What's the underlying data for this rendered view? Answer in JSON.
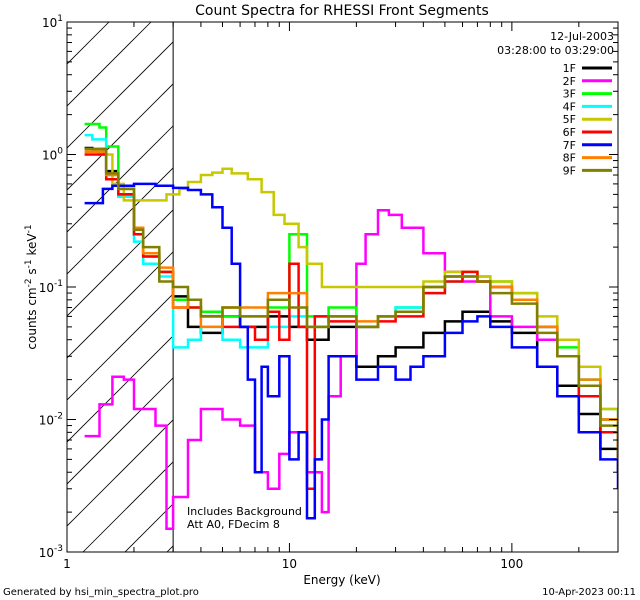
{
  "chart_data": {
    "type": "line",
    "title": "Count Spectra for RHESSI Front Segments",
    "xlabel": "Energy (keV)",
    "ylabel_parts": [
      "counts cm",
      "-2",
      " s",
      "-1",
      " keV",
      "-1"
    ],
    "xscale": "log",
    "yscale": "log",
    "xlim": [
      1,
      300
    ],
    "ylim": [
      0.001,
      10
    ],
    "x_ticks": [
      {
        "value": 1,
        "label": "1"
      },
      {
        "value": 10,
        "label": "10"
      },
      {
        "value": 100,
        "label": "100"
      }
    ],
    "y_ticks": [
      {
        "value": 10,
        "base": "10",
        "exp": "1"
      },
      {
        "value": 1,
        "base": "10",
        "exp": "0"
      },
      {
        "value": 0.1,
        "base": "10",
        "exp": "-1"
      },
      {
        "value": 0.01,
        "base": "10",
        "exp": "-2"
      },
      {
        "value": 0.001,
        "base": "10",
        "exp": "-3"
      }
    ],
    "shaded_region": {
      "x_from": 1,
      "x_to": 3,
      "pattern": "hatched"
    },
    "date": "12-Jul-2003",
    "time_range": "03:28:00 to 03:29:00",
    "annotations": [
      "Includes Background",
      "Att A0, FDecim 8"
    ],
    "footer_left": "Generated by hsi_min_spectra_plot.pro",
    "footer_right": "10-Apr-2023 00:11",
    "series": [
      {
        "name": "1F",
        "color": "#000000",
        "points": [
          [
            1.2,
            1.12
          ],
          [
            1.3,
            1.1
          ],
          [
            1.5,
            0.75
          ],
          [
            1.7,
            0.5
          ],
          [
            2.0,
            0.27
          ],
          [
            2.2,
            0.18
          ],
          [
            2.6,
            0.13
          ],
          [
            3.0,
            0.085
          ],
          [
            3.5,
            0.05
          ],
          [
            4.0,
            0.045
          ],
          [
            5.0,
            0.06
          ],
          [
            6.0,
            0.05
          ],
          [
            8.0,
            0.06
          ],
          [
            10,
            0.05
          ],
          [
            12,
            0.04
          ],
          [
            15,
            0.05
          ],
          [
            20,
            0.025
          ],
          [
            25,
            0.03
          ],
          [
            30,
            0.035
          ],
          [
            40,
            0.045
          ],
          [
            50,
            0.055
          ],
          [
            60,
            0.065
          ],
          [
            70,
            0.065
          ],
          [
            80,
            0.055
          ],
          [
            100,
            0.045
          ],
          [
            130,
            0.025
          ],
          [
            160,
            0.018
          ],
          [
            200,
            0.011
          ],
          [
            250,
            0.006
          ],
          [
            300,
            0.004
          ]
        ]
      },
      {
        "name": "2F",
        "color": "#ff00ff",
        "points": [
          [
            1.2,
            0.0075
          ],
          [
            1.4,
            0.013
          ],
          [
            1.6,
            0.021
          ],
          [
            1.8,
            0.02
          ],
          [
            2.0,
            0.012
          ],
          [
            2.2,
            0.012
          ],
          [
            2.5,
            0.009
          ],
          [
            2.8,
            0.0015
          ],
          [
            3.0,
            0.0026
          ],
          [
            3.5,
            0.007
          ],
          [
            4.0,
            0.012
          ],
          [
            5.0,
            0.01
          ],
          [
            6.0,
            0.009
          ],
          [
            7.0,
            0.004
          ],
          [
            8.0,
            0.003
          ],
          [
            9.0,
            0.0055
          ],
          [
            10,
            0.008
          ],
          [
            12,
            0.004
          ],
          [
            14,
            0.002
          ],
          [
            15,
            0.015
          ],
          [
            17,
            0.03
          ],
          [
            20,
            0.15
          ],
          [
            22,
            0.25
          ],
          [
            25,
            0.38
          ],
          [
            28,
            0.35
          ],
          [
            32,
            0.28
          ],
          [
            40,
            0.18
          ],
          [
            50,
            0.13
          ],
          [
            60,
            0.11
          ],
          [
            80,
            0.06
          ],
          [
            100,
            0.05
          ],
          [
            130,
            0.04
          ],
          [
            160,
            0.03
          ],
          [
            200,
            0.015
          ],
          [
            250,
            0.01
          ],
          [
            300,
            0.008
          ]
        ]
      },
      {
        "name": "3F",
        "color": "#00ff00",
        "points": [
          [
            1.2,
            1.7
          ],
          [
            1.4,
            1.6
          ],
          [
            1.5,
            1.15
          ],
          [
            1.7,
            0.55
          ],
          [
            2.0,
            0.25
          ],
          [
            2.2,
            0.17
          ],
          [
            2.6,
            0.13
          ],
          [
            3.0,
            0.08
          ],
          [
            3.5,
            0.07
          ],
          [
            4.0,
            0.065
          ],
          [
            5.0,
            0.06
          ],
          [
            6.0,
            0.06
          ],
          [
            8.0,
            0.07
          ],
          [
            10,
            0.25
          ],
          [
            12,
            0.06
          ],
          [
            15,
            0.07
          ],
          [
            20,
            0.05
          ],
          [
            25,
            0.06
          ],
          [
            30,
            0.07
          ],
          [
            40,
            0.1
          ],
          [
            50,
            0.12
          ],
          [
            60,
            0.13
          ],
          [
            70,
            0.12
          ],
          [
            80,
            0.11
          ],
          [
            100,
            0.09
          ],
          [
            130,
            0.05
          ],
          [
            160,
            0.035
          ],
          [
            200,
            0.02
          ],
          [
            250,
            0.01
          ],
          [
            300,
            0.006
          ]
        ]
      },
      {
        "name": "4F",
        "color": "#00ffff",
        "points": [
          [
            1.2,
            1.4
          ],
          [
            1.3,
            1.3
          ],
          [
            1.5,
            0.7
          ],
          [
            1.7,
            0.48
          ],
          [
            2.0,
            0.22
          ],
          [
            2.2,
            0.15
          ],
          [
            2.6,
            0.12
          ],
          [
            3.0,
            0.035
          ],
          [
            3.5,
            0.04
          ],
          [
            4.0,
            0.05
          ],
          [
            5.0,
            0.04
          ],
          [
            6.0,
            0.035
          ],
          [
            8.0,
            0.05
          ],
          [
            10,
            0.06
          ],
          [
            12,
            0.05
          ],
          [
            15,
            0.06
          ],
          [
            20,
            0.05
          ],
          [
            25,
            0.06
          ],
          [
            30,
            0.07
          ],
          [
            40,
            0.09
          ],
          [
            50,
            0.11
          ],
          [
            60,
            0.12
          ],
          [
            70,
            0.12
          ],
          [
            80,
            0.1
          ],
          [
            100,
            0.08
          ],
          [
            130,
            0.05
          ],
          [
            160,
            0.03
          ],
          [
            200,
            0.02
          ],
          [
            250,
            0.012
          ],
          [
            300,
            0.008
          ]
        ]
      },
      {
        "name": "5F",
        "color": "#c8c800",
        "points": [
          [
            1.2,
            1.1
          ],
          [
            1.4,
            1.0
          ],
          [
            1.6,
            0.6
          ],
          [
            1.8,
            0.45
          ],
          [
            2.0,
            0.45
          ],
          [
            2.4,
            0.45
          ],
          [
            2.8,
            0.5
          ],
          [
            3.2,
            0.55
          ],
          [
            3.5,
            0.62
          ],
          [
            4.0,
            0.7
          ],
          [
            4.5,
            0.73
          ],
          [
            5.0,
            0.78
          ],
          [
            5.5,
            0.72
          ],
          [
            6.5,
            0.65
          ],
          [
            7.5,
            0.52
          ],
          [
            8.5,
            0.35
          ],
          [
            9.5,
            0.3
          ],
          [
            10,
            0.3
          ],
          [
            11,
            0.2
          ],
          [
            12,
            0.15
          ],
          [
            14,
            0.1
          ],
          [
            20,
            0.1
          ],
          [
            30,
            0.1
          ],
          [
            40,
            0.11
          ],
          [
            50,
            0.13
          ],
          [
            60,
            0.13
          ],
          [
            70,
            0.12
          ],
          [
            80,
            0.11
          ],
          [
            100,
            0.09
          ],
          [
            130,
            0.06
          ],
          [
            160,
            0.04
          ],
          [
            200,
            0.025
          ],
          [
            250,
            0.012
          ],
          [
            300,
            0.008
          ]
        ]
      },
      {
        "name": "6F",
        "color": "#ff0000",
        "points": [
          [
            1.2,
            1.0
          ],
          [
            1.3,
            1.0
          ],
          [
            1.5,
            0.65
          ],
          [
            1.7,
            0.5
          ],
          [
            2.0,
            0.25
          ],
          [
            2.2,
            0.17
          ],
          [
            2.6,
            0.13
          ],
          [
            3.0,
            0.07
          ],
          [
            3.5,
            0.07
          ],
          [
            4.0,
            0.06
          ],
          [
            5.0,
            0.05
          ],
          [
            6.0,
            0.05
          ],
          [
            7.0,
            0.04
          ],
          [
            8.0,
            0.065
          ],
          [
            9.0,
            0.04
          ],
          [
            10,
            0.15
          ],
          [
            11,
            0.05
          ],
          [
            12,
            0.003
          ],
          [
            13,
            0.06
          ],
          [
            15,
            0.055
          ],
          [
            20,
            0.05
          ],
          [
            25,
            0.055
          ],
          [
            30,
            0.06
          ],
          [
            40,
            0.09
          ],
          [
            50,
            0.11
          ],
          [
            60,
            0.13
          ],
          [
            70,
            0.11
          ],
          [
            80,
            0.1
          ],
          [
            100,
            0.08
          ],
          [
            130,
            0.05
          ],
          [
            160,
            0.03
          ],
          [
            200,
            0.015
          ],
          [
            250,
            0.008
          ],
          [
            300,
            0.005
          ]
        ]
      },
      {
        "name": "7F",
        "color": "#0000ff",
        "points": [
          [
            1.2,
            0.43
          ],
          [
            1.35,
            0.43
          ],
          [
            1.45,
            0.55
          ],
          [
            1.6,
            0.58
          ],
          [
            2.0,
            0.6
          ],
          [
            2.5,
            0.58
          ],
          [
            3.0,
            0.56
          ],
          [
            3.5,
            0.54
          ],
          [
            4.0,
            0.5
          ],
          [
            4.5,
            0.4
          ],
          [
            5.0,
            0.28
          ],
          [
            5.5,
            0.15
          ],
          [
            6.0,
            0.05
          ],
          [
            6.5,
            0.02
          ],
          [
            7.0,
            0.004
          ],
          [
            7.5,
            0.025
          ],
          [
            8.0,
            0.015
          ],
          [
            9.0,
            0.03
          ],
          [
            10,
            0.005
          ],
          [
            11,
            0.008
          ],
          [
            12,
            0.0018
          ],
          [
            13,
            0.005
          ],
          [
            14,
            0.01
          ],
          [
            15,
            0.03
          ],
          [
            20,
            0.02
          ],
          [
            25,
            0.025
          ],
          [
            30,
            0.02
          ],
          [
            35,
            0.025
          ],
          [
            40,
            0.03
          ],
          [
            50,
            0.045
          ],
          [
            60,
            0.055
          ],
          [
            70,
            0.06
          ],
          [
            80,
            0.05
          ],
          [
            100,
            0.035
          ],
          [
            130,
            0.025
          ],
          [
            160,
            0.015
          ],
          [
            200,
            0.008
          ],
          [
            250,
            0.005
          ],
          [
            300,
            0.003
          ]
        ]
      },
      {
        "name": "8F",
        "color": "#ff8000",
        "points": [
          [
            1.2,
            1.05
          ],
          [
            1.3,
            1.05
          ],
          [
            1.5,
            0.7
          ],
          [
            1.7,
            0.55
          ],
          [
            2.0,
            0.28
          ],
          [
            2.2,
            0.18
          ],
          [
            2.6,
            0.14
          ],
          [
            3.0,
            0.07
          ],
          [
            3.5,
            0.08
          ],
          [
            4.0,
            0.05
          ],
          [
            5.0,
            0.07
          ],
          [
            6.0,
            0.07
          ],
          [
            8.0,
            0.09
          ],
          [
            10,
            0.09
          ],
          [
            12,
            0.05
          ],
          [
            15,
            0.06
          ],
          [
            20,
            0.055
          ],
          [
            25,
            0.06
          ],
          [
            30,
            0.065
          ],
          [
            40,
            0.1
          ],
          [
            50,
            0.12
          ],
          [
            60,
            0.12
          ],
          [
            70,
            0.11
          ],
          [
            80,
            0.1
          ],
          [
            100,
            0.08
          ],
          [
            130,
            0.05
          ],
          [
            160,
            0.03
          ],
          [
            200,
            0.02
          ],
          [
            250,
            0.01
          ],
          [
            300,
            0.006
          ]
        ]
      },
      {
        "name": "9F",
        "color": "#808000",
        "points": [
          [
            1.2,
            1.1
          ],
          [
            1.3,
            1.1
          ],
          [
            1.5,
            0.72
          ],
          [
            1.7,
            0.55
          ],
          [
            2.0,
            0.27
          ],
          [
            2.2,
            0.2
          ],
          [
            2.6,
            0.11
          ],
          [
            3.0,
            0.1
          ],
          [
            3.5,
            0.08
          ],
          [
            4.0,
            0.06
          ],
          [
            5.0,
            0.07
          ],
          [
            6.0,
            0.06
          ],
          [
            8.0,
            0.08
          ],
          [
            10,
            0.07
          ],
          [
            12,
            0.05
          ],
          [
            15,
            0.06
          ],
          [
            20,
            0.05
          ],
          [
            25,
            0.06
          ],
          [
            30,
            0.065
          ],
          [
            40,
            0.1
          ],
          [
            50,
            0.12
          ],
          [
            60,
            0.12
          ],
          [
            70,
            0.11
          ],
          [
            80,
            0.09
          ],
          [
            100,
            0.075
          ],
          [
            130,
            0.045
          ],
          [
            160,
            0.03
          ],
          [
            200,
            0.018
          ],
          [
            250,
            0.009
          ],
          [
            300,
            0.005
          ]
        ]
      }
    ]
  }
}
